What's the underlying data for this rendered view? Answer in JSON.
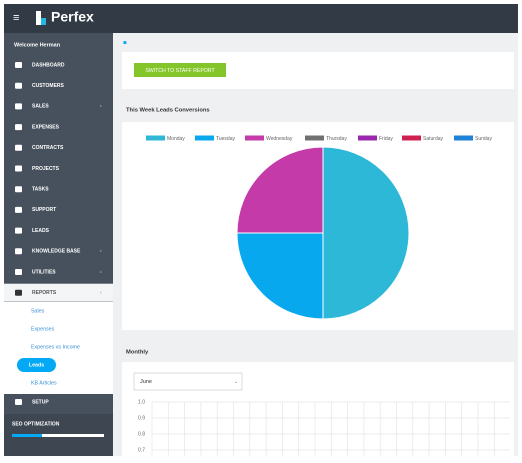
{
  "header": {
    "logo": "Perfex"
  },
  "sidebar": {
    "user": "Welcome Herman",
    "menu": [
      "DASHBOARD",
      "CUSTOMERS",
      "SALES",
      "EXPENSES",
      "CONTRACTS",
      "PROJECTS",
      "TASKS",
      "SUPPORT",
      "LEADS",
      "KNOWLEDGE BASE",
      "UTILITIES",
      "REPORTS"
    ],
    "submenu": [
      "Sales",
      "Expenses",
      "Expenses vs Income",
      "Leads",
      "KB Articles"
    ],
    "setup": "SETUP",
    "seo": "SEO OPTIMIZATION"
  },
  "button": "SWITCH TO STAFF REPORT",
  "chart_data": [
    {
      "type": "pie",
      "title": "This Week Leads Conversions",
      "categories": [
        "Monday",
        "Tuesday",
        "Wednesday",
        "Thursday",
        "Friday",
        "Saturday",
        "Sunday"
      ],
      "values": [
        50,
        25,
        25,
        0,
        0,
        0,
        0
      ],
      "colors": [
        "#2db8d8",
        "#08a8ef",
        "#c43aa8",
        "#707070",
        "#9b27af",
        "#d0204f",
        "#1e82d6"
      ],
      "legend": "top"
    },
    {
      "type": "line",
      "title": "Monthly",
      "filter": "June",
      "ylim": [
        0.7,
        1.0
      ],
      "yticks": [
        {
          "value": 1.0,
          "label": "1.0"
        },
        0.9,
        0.8,
        0.7
      ],
      "grid": true
    }
  ]
}
